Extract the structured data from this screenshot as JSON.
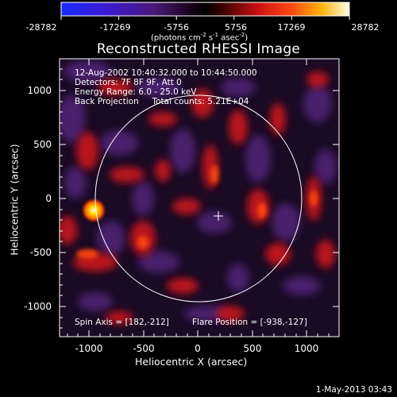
{
  "colorbar": {
    "ticks": [
      "-28782",
      "-17269",
      "-5756",
      "5756",
      "17269",
      "28782"
    ],
    "units_html": "(photons cm<sup>-2</sup> s<sup>-1</sup> asec<sup>-2</sup>)"
  },
  "plot": {
    "title": "Reconstructed RHESSI Image",
    "info_lines": [
      "12-Aug-2002 10:40:32.000 to 10:44:50.000",
      "Detectors: 7F 8F 9F, Att 0",
      "Energy Range: 6.0 - 25.0 keV",
      "Back Projection     Total counts: 5.21E+04"
    ],
    "spin_axis": "Spin Axis = [182,-212]",
    "flare_position": "Flare Position = [-938,-127]",
    "x_axis_label": "Heliocentric X (arcsec)",
    "y_axis_label": "Heliocentric Y (arcsec)",
    "x_ticks": [
      "-1000",
      "-500",
      "0",
      "500",
      "1000"
    ],
    "y_ticks": [
      "1000",
      "500",
      "0",
      "-500",
      "-1000"
    ],
    "footer_date": "1-May-2013 03:43"
  }
}
